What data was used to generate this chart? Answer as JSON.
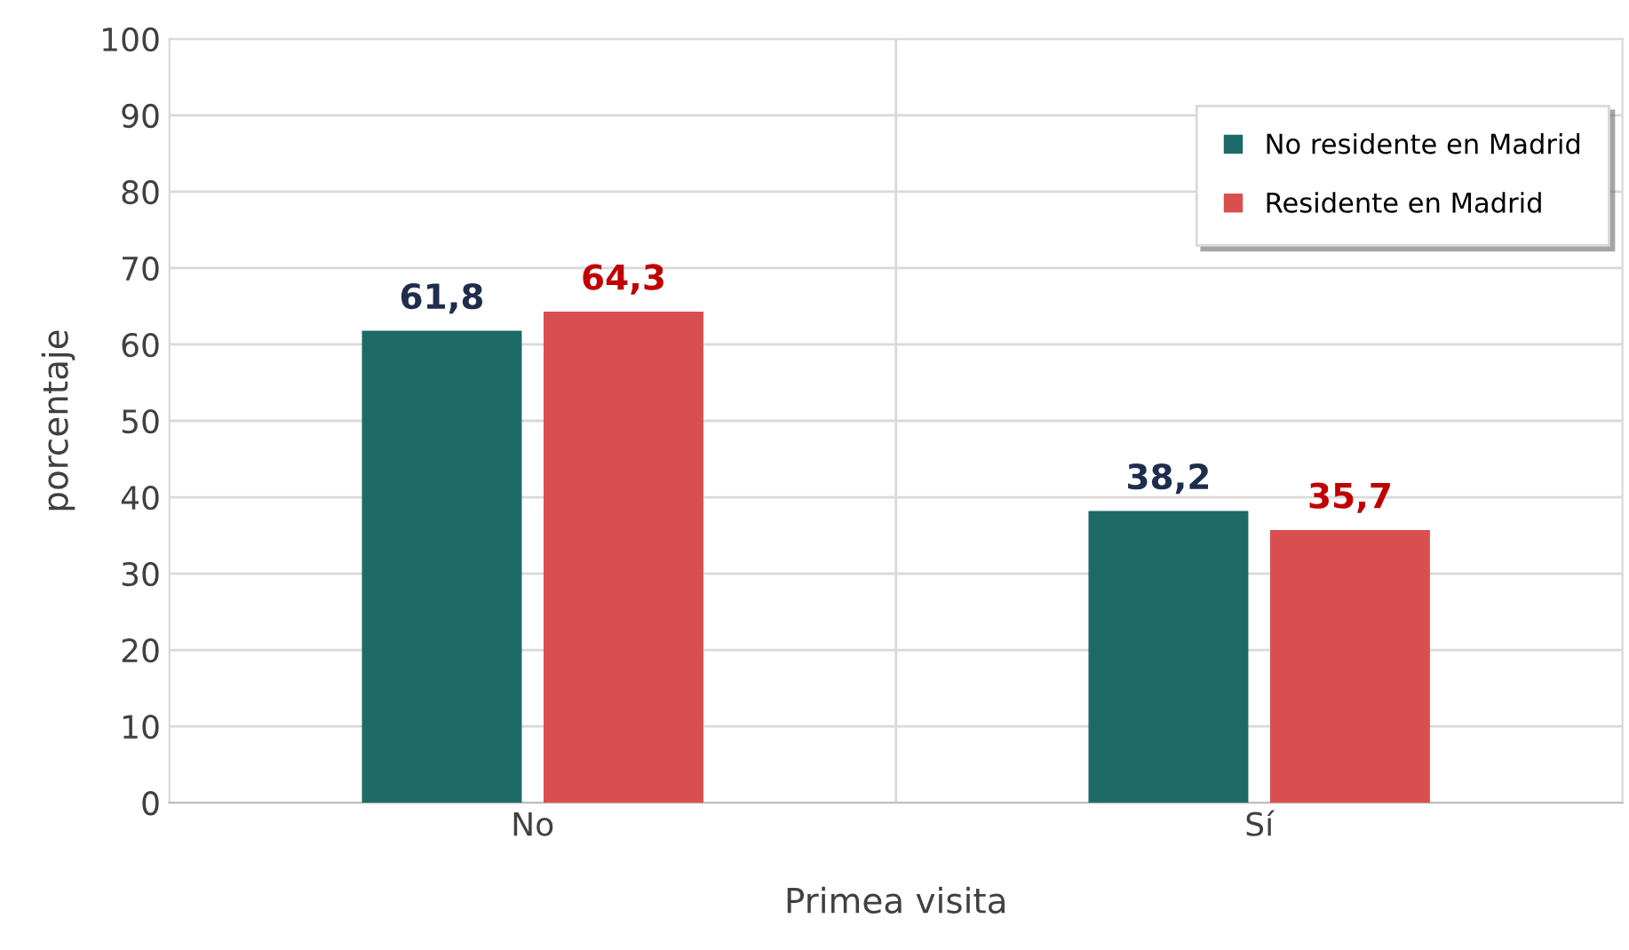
{
  "chart_data": {
    "type": "bar",
    "xlabel": "Primea visita",
    "ylabel": "porcentaje",
    "categories": [
      "No",
      "Sí"
    ],
    "series": [
      {
        "name": "No residente en Madrid",
        "color": "#1d6a68",
        "values": [
          61.8,
          38.2
        ],
        "value_labels": [
          "61,8",
          "38,2"
        ]
      },
      {
        "name": "Residente en Madrid",
        "color": "#d94f4f",
        "values": [
          64.3,
          35.7
        ],
        "value_labels": [
          "64,3",
          "35,7"
        ]
      }
    ],
    "ylim": [
      0,
      100
    ],
    "yticks": [
      0,
      10,
      20,
      30,
      40,
      50,
      60,
      70,
      80,
      90,
      100
    ],
    "grid": true,
    "legend": "top right"
  }
}
